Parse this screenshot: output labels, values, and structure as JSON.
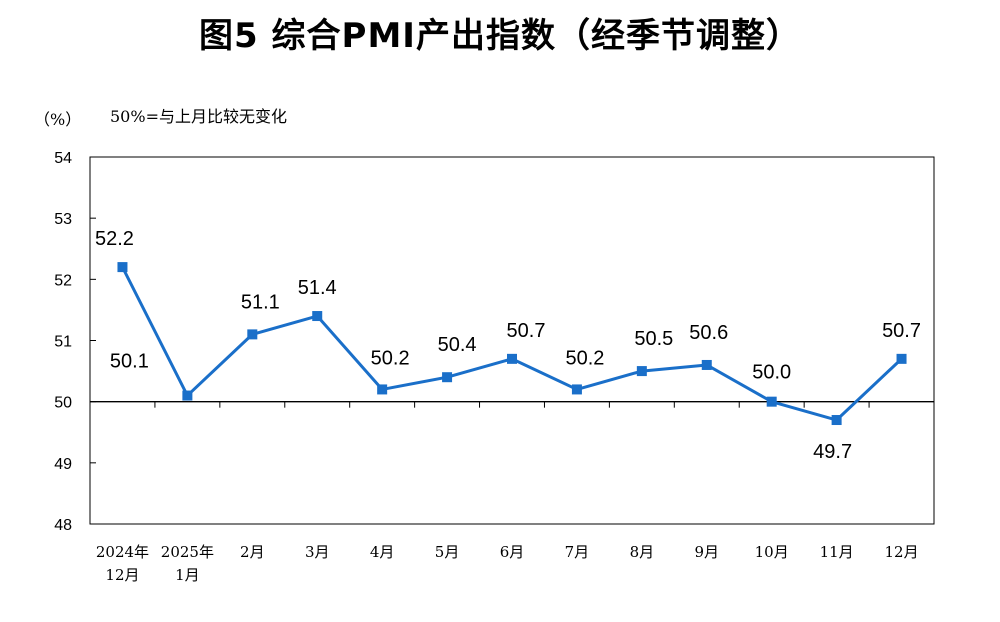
{
  "title": "图5  综合PMI产出指数（经季节调整）",
  "unit_label": "（%）",
  "note": "50%=与上月比较无变化",
  "chart_data": {
    "type": "line",
    "title": "图5  综合PMI产出指数（经季节调整）",
    "ylabel": "（%）",
    "ylim": [
      48,
      54
    ],
    "yticks": [
      "48",
      "49",
      "50",
      "51",
      "52",
      "53",
      "54"
    ],
    "categories": [
      [
        "2024年",
        "12月"
      ],
      [
        "2025年",
        "1月"
      ],
      [
        "2月"
      ],
      [
        "3月"
      ],
      [
        "4月"
      ],
      [
        "5月"
      ],
      [
        "6月"
      ],
      [
        "7月"
      ],
      [
        "8月"
      ],
      [
        "9月"
      ],
      [
        "10月"
      ],
      [
        "11月"
      ],
      [
        "12月"
      ]
    ],
    "values": [
      52.2,
      50.1,
      51.1,
      51.4,
      50.2,
      50.4,
      50.7,
      50.2,
      50.5,
      50.6,
      50.0,
      49.7,
      50.7
    ],
    "data_labels": [
      "52.2",
      "50.1",
      "51.1",
      "51.4",
      "50.2",
      "50.4",
      "50.7",
      "50.2",
      "50.5",
      "50.6",
      "50.0",
      "49.7",
      "50.7"
    ],
    "reference_line": 50,
    "line_color": "#1a6fc9",
    "grid": false,
    "legend": "none"
  }
}
